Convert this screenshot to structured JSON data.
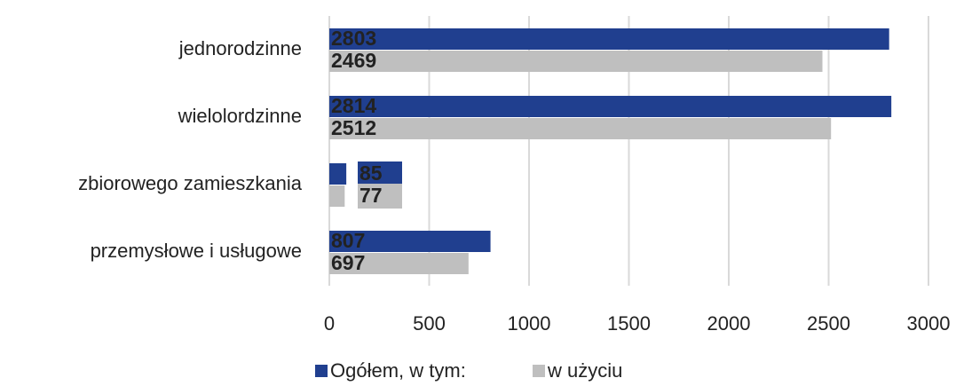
{
  "chart_data": {
    "type": "barh",
    "categories": [
      "jednorodzinne",
      "wielolordzinne",
      "zbiorowego zamieszkania",
      "przemysłowe i usługowe"
    ],
    "series": [
      {
        "name": "Ogółem, w tym:",
        "color": "#203f8f",
        "values": [
          2803,
          2814,
          85,
          807
        ]
      },
      {
        "name": "w użyciu",
        "color": "#bfbfbf",
        "values": [
          2469,
          2512,
          77,
          697
        ]
      }
    ],
    "xlim": [
      0,
      3000
    ],
    "xticks": [
      0,
      500,
      1000,
      1500,
      2000,
      2500,
      3000
    ],
    "grid": true,
    "legend": "bottom"
  }
}
